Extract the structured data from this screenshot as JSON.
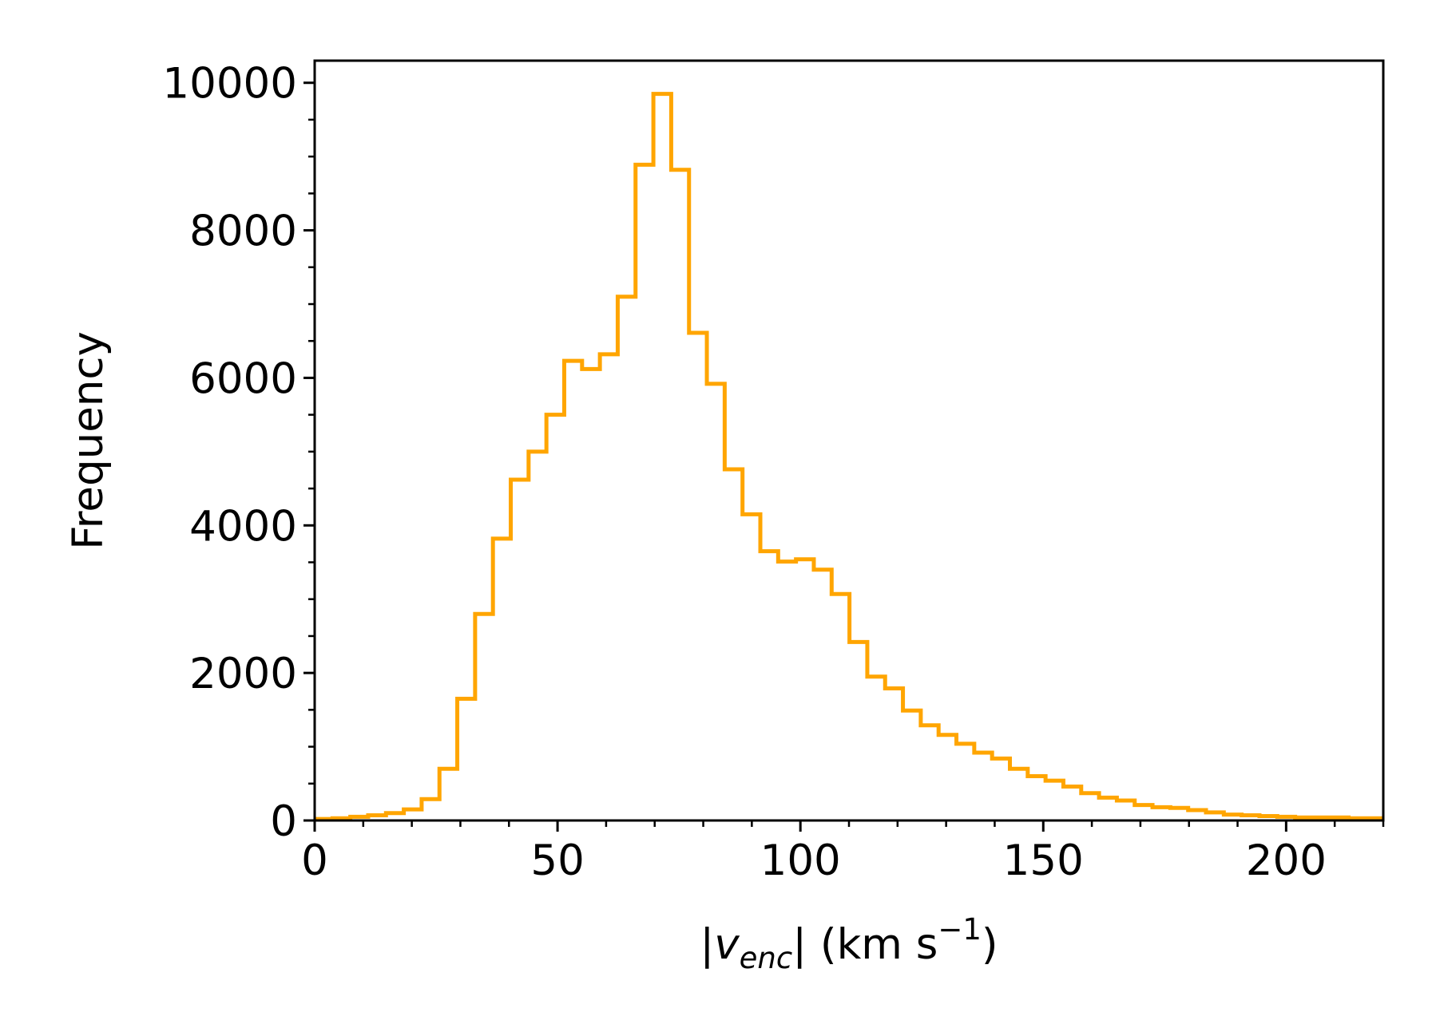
{
  "chart_data": {
    "type": "histogram",
    "title": "",
    "xlabel": {
      "open": "|",
      "var": "v",
      "sub": "enc",
      "close": "| (km s",
      "sup": "−1",
      "end": ")"
    },
    "ylabel": "Frequency",
    "xlim": [
      0,
      220
    ],
    "ylim": [
      0,
      10300
    ],
    "bin_width": 3.67,
    "bin_start": 0,
    "values": [
      20,
      30,
      50,
      70,
      100,
      150,
      290,
      700,
      1650,
      2800,
      3820,
      4620,
      5000,
      5500,
      6230,
      6120,
      6320,
      7100,
      8890,
      9850,
      8820,
      6610,
      5920,
      4760,
      4150,
      3650,
      3510,
      3540,
      3400,
      3070,
      2420,
      1950,
      1790,
      1490,
      1290,
      1160,
      1040,
      920,
      840,
      700,
      600,
      540,
      460,
      370,
      310,
      270,
      210,
      180,
      170,
      140,
      110,
      80,
      70,
      60,
      50,
      40,
      40,
      40,
      30,
      30
    ],
    "xticks": [
      0,
      50,
      100,
      150,
      200
    ],
    "xtick_labels": [
      "0",
      "50",
      "100",
      "150",
      "200"
    ],
    "xminor_step": 10,
    "yticks": [
      0,
      2000,
      4000,
      6000,
      8000,
      10000
    ],
    "ytick_labels": [
      "0",
      "2000",
      "4000",
      "6000",
      "8000",
      "10000"
    ],
    "yminor_step": 500,
    "line_color": "#FFA500",
    "axis_color": "#000000",
    "grid": false
  }
}
